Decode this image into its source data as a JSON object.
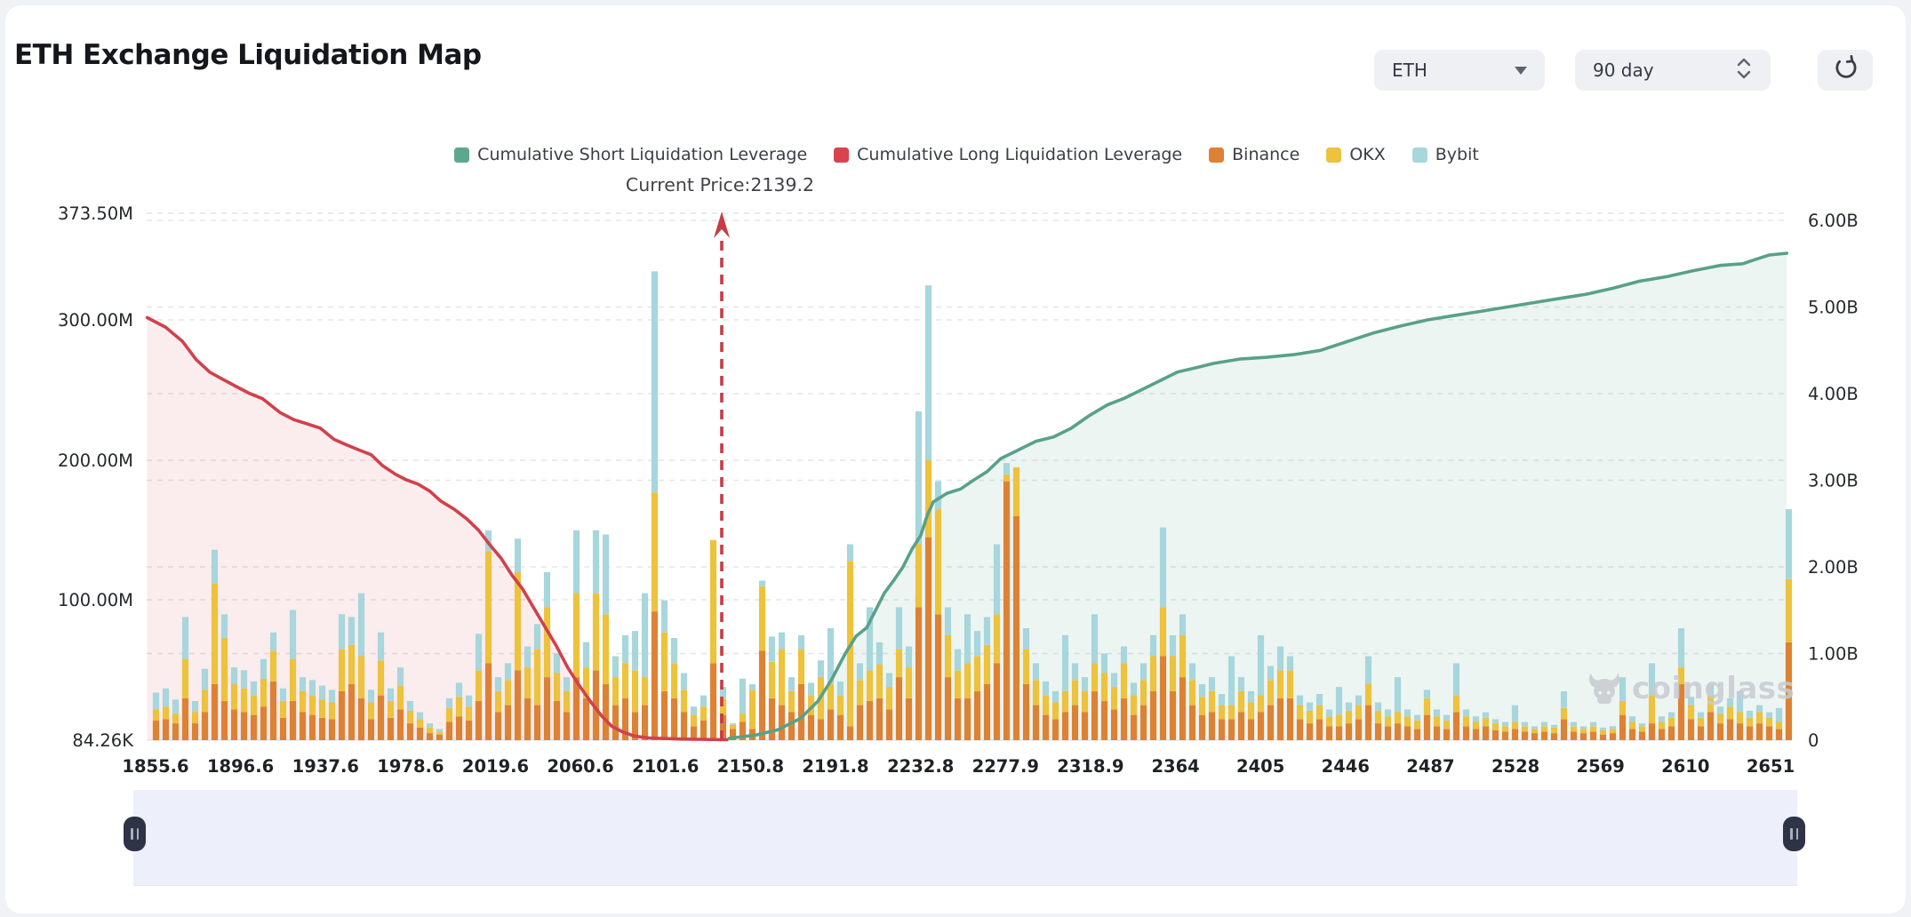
{
  "page": {
    "background": "#f1f2f5",
    "card_background": "#ffffff"
  },
  "header": {
    "title": "ETH Exchange Liquidation Map",
    "controls": {
      "symbol_select": {
        "value": "ETH",
        "icon": "caret-down-icon"
      },
      "period_select": {
        "value": "90 day",
        "icon": "stepper-chevrons-icon"
      },
      "refresh_button": {
        "icon": "refresh-icon"
      }
    }
  },
  "watermark": {
    "text": "coinglass",
    "icon": "bull-logo-icon"
  },
  "range_selector": {
    "track_color": "#edeffb",
    "handle_color": "#2e3346",
    "left_handle_icon": "pause-handle-icon",
    "right_handle_icon": "pause-handle-icon"
  },
  "chart_data": {
    "type": "bar",
    "title": "ETH Exchange Liquidation Map",
    "annotation": {
      "label": "Current Price:2139.2",
      "current_price": 2139.2
    },
    "legend": [
      {
        "label": "Cumulative Short Liquidation Leverage",
        "color": "#5ea78f",
        "series_type": "line"
      },
      {
        "label": "Cumulative Long Liquidation Leverage",
        "color": "#d9434e",
        "series_type": "line"
      },
      {
        "label": "Binance",
        "color": "#dd8234",
        "series_type": "bar"
      },
      {
        "label": "OKX",
        "color": "#edc23c",
        "series_type": "bar"
      },
      {
        "label": "Bybit",
        "color": "#a7d6dc",
        "series_type": "bar"
      }
    ],
    "colors": {
      "binance": "#dd8234",
      "okx": "#edc23c",
      "bybit": "#a7d6dc",
      "long_line": "#d0414c",
      "long_fill": "rgba(214,69,80,0.10)",
      "short_line": "#58a189",
      "short_fill": "rgba(94,167,143,0.11)",
      "arrow": "#c73b44",
      "grid": "#e4e5e7"
    },
    "x_axis": {
      "tick_labels": [
        "1855.6",
        "1896.6",
        "1937.6",
        "1978.6",
        "2019.6",
        "2060.6",
        "2101.6",
        "2150.8",
        "2191.8",
        "2232.8",
        "2277.9",
        "2318.9",
        "2364",
        "2405",
        "2446",
        "2487",
        "2528",
        "2569",
        "2610",
        "2651"
      ]
    },
    "left_axis": {
      "tick_labels": [
        "373.50M",
        "300.00M",
        "200.00M",
        "100.00M",
        "84.26K"
      ],
      "min": "84.26K",
      "max": "373.50M",
      "unit": "USD (millions)"
    },
    "right_axis": {
      "tick_labels": [
        "6.00B",
        "5.00B",
        "4.00B",
        "3.00B",
        "2.00B",
        "1.00B",
        "0"
      ],
      "min": 0,
      "max": "6.00B"
    },
    "grid": {
      "dashed": true
    },
    "stack_order": [
      "Binance",
      "OKX",
      "Bybit"
    ],
    "bars_unit": "M",
    "bars": [
      [
        14,
        8,
        12
      ],
      [
        15,
        9,
        13
      ],
      [
        12,
        7,
        10
      ],
      [
        30,
        28,
        30
      ],
      [
        12,
        8,
        8
      ],
      [
        20,
        16,
        15
      ],
      [
        40,
        72,
        24
      ],
      [
        28,
        45,
        17
      ],
      [
        22,
        18,
        12
      ],
      [
        20,
        17,
        13
      ],
      [
        18,
        14,
        10
      ],
      [
        24,
        20,
        14
      ],
      [
        42,
        22,
        13
      ],
      [
        16,
        12,
        9
      ],
      [
        28,
        30,
        35
      ],
      [
        20,
        15,
        10
      ],
      [
        18,
        14,
        11
      ],
      [
        16,
        13,
        10
      ],
      [
        15,
        12,
        9
      ],
      [
        35,
        30,
        25
      ],
      [
        40,
        28,
        20
      ],
      [
        30,
        30,
        45
      ],
      [
        15,
        12,
        9
      ],
      [
        32,
        25,
        20
      ],
      [
        16,
        12,
        9
      ],
      [
        22,
        17,
        13
      ],
      [
        12,
        9,
        7
      ],
      [
        9,
        6,
        5
      ],
      [
        5,
        4,
        3
      ],
      [
        4,
        2,
        2
      ],
      [
        13,
        10,
        7
      ],
      [
        17,
        14,
        10
      ],
      [
        14,
        10,
        8
      ],
      [
        28,
        22,
        26
      ],
      [
        55,
        80,
        15
      ],
      [
        20,
        15,
        10
      ],
      [
        25,
        18,
        12
      ],
      [
        50,
        70,
        24
      ],
      [
        30,
        22,
        15
      ],
      [
        25,
        40,
        18
      ],
      [
        45,
        50,
        25
      ],
      [
        28,
        20,
        14
      ],
      [
        20,
        15,
        10
      ],
      [
        45,
        60,
        45
      ],
      [
        30,
        22,
        18
      ],
      [
        50,
        55,
        45
      ],
      [
        40,
        50,
        57
      ],
      [
        25,
        20,
        15
      ],
      [
        30,
        25,
        20
      ],
      [
        20,
        30,
        28
      ],
      [
        25,
        20,
        60
      ],
      [
        92,
        85,
        158
      ],
      [
        35,
        42,
        23
      ],
      [
        30,
        25,
        18
      ],
      [
        20,
        16,
        12
      ],
      [
        10,
        8,
        6
      ],
      [
        14,
        10,
        8
      ],
      [
        55,
        88,
        0
      ],
      [
        18,
        12,
        8
      ],
      [
        8,
        3,
        1
      ],
      [
        13,
        6,
        25
      ],
      [
        8,
        28,
        4
      ],
      [
        64,
        46,
        4
      ],
      [
        30,
        26,
        18
      ],
      [
        25,
        40,
        12
      ],
      [
        20,
        15,
        10
      ],
      [
        40,
        25,
        10
      ],
      [
        18,
        14,
        9
      ],
      [
        15,
        30,
        12
      ],
      [
        22,
        18,
        40
      ],
      [
        18,
        14,
        10
      ],
      [
        10,
        118,
        12
      ],
      [
        25,
        18,
        12
      ],
      [
        28,
        22,
        45
      ],
      [
        30,
        24,
        16
      ],
      [
        22,
        16,
        10
      ],
      [
        45,
        20,
        30
      ],
      [
        30,
        22,
        15
      ],
      [
        95,
        45,
        95
      ],
      [
        145,
        55,
        125
      ],
      [
        90,
        75,
        20
      ],
      [
        45,
        30,
        20
      ],
      [
        30,
        20,
        15
      ],
      [
        30,
        25,
        35
      ],
      [
        35,
        25,
        18
      ],
      [
        40,
        28,
        20
      ],
      [
        55,
        35,
        50
      ],
      [
        185,
        5,
        8
      ],
      [
        160,
        35,
        0
      ],
      [
        40,
        25,
        15
      ],
      [
        25,
        18,
        12
      ],
      [
        18,
        14,
        10
      ],
      [
        15,
        12,
        8
      ],
      [
        20,
        15,
        40
      ],
      [
        25,
        18,
        12
      ],
      [
        20,
        15,
        10
      ],
      [
        35,
        20,
        35
      ],
      [
        28,
        20,
        14
      ],
      [
        22,
        16,
        10
      ],
      [
        30,
        25,
        12
      ],
      [
        18,
        14,
        9
      ],
      [
        25,
        18,
        12
      ],
      [
        35,
        25,
        15
      ],
      [
        60,
        35,
        57
      ],
      [
        35,
        25,
        15
      ],
      [
        45,
        30,
        15
      ],
      [
        25,
        18,
        12
      ],
      [
        18,
        13,
        9
      ],
      [
        20,
        15,
        10
      ],
      [
        15,
        10,
        8
      ],
      [
        15,
        10,
        35
      ],
      [
        20,
        15,
        10
      ],
      [
        15,
        12,
        8
      ],
      [
        20,
        12,
        43
      ],
      [
        25,
        18,
        10
      ],
      [
        30,
        20,
        17
      ],
      [
        30,
        20,
        10
      ],
      [
        15,
        10,
        7
      ],
      [
        12,
        9,
        6
      ],
      [
        15,
        10,
        8
      ],
      [
        10,
        7,
        5
      ],
      [
        10,
        8,
        20
      ],
      [
        12,
        9,
        6
      ],
      [
        15,
        10,
        7
      ],
      [
        25,
        15,
        20
      ],
      [
        12,
        9,
        6
      ],
      [
        10,
        7,
        5
      ],
      [
        12,
        8,
        25
      ],
      [
        10,
        7,
        5
      ],
      [
        8,
        6,
        4
      ],
      [
        18,
        12,
        6
      ],
      [
        10,
        7,
        5
      ],
      [
        8,
        6,
        4
      ],
      [
        20,
        12,
        23
      ],
      [
        10,
        7,
        5
      ],
      [
        8,
        5,
        4
      ],
      [
        10,
        6,
        4
      ],
      [
        7,
        5,
        3
      ],
      [
        6,
        4,
        3
      ],
      [
        8,
        5,
        12
      ],
      [
        6,
        4,
        3
      ],
      [
        5,
        3,
        2
      ],
      [
        6,
        4,
        3
      ],
      [
        5,
        4,
        2
      ],
      [
        15,
        8,
        12
      ],
      [
        6,
        4,
        3
      ],
      [
        5,
        3,
        2
      ],
      [
        6,
        4,
        3
      ],
      [
        4,
        3,
        2
      ],
      [
        5,
        3,
        2
      ],
      [
        18,
        10,
        17
      ],
      [
        8,
        5,
        4
      ],
      [
        6,
        4,
        2
      ],
      [
        12,
        20,
        23
      ],
      [
        8,
        5,
        4
      ],
      [
        10,
        6,
        4
      ],
      [
        40,
        12,
        28
      ],
      [
        15,
        10,
        6
      ],
      [
        10,
        6,
        4
      ],
      [
        20,
        12,
        8
      ],
      [
        12,
        7,
        5
      ],
      [
        15,
        9,
        6
      ],
      [
        12,
        8,
        15
      ],
      [
        10,
        6,
        5
      ],
      [
        12,
        8,
        5
      ],
      [
        10,
        6,
        4
      ],
      [
        8,
        5,
        10
      ],
      [
        70,
        45,
        50
      ]
    ],
    "series": [
      {
        "name": "Cumulative Long Liquidation Leverage",
        "axis": "left",
        "unit": "M",
        "points": [
          [
            -0.9,
            302
          ],
          [
            1,
            295
          ],
          [
            2.7,
            285
          ],
          [
            4.1,
            272
          ],
          [
            5.5,
            263
          ],
          [
            6.8,
            258
          ],
          [
            8.4,
            252
          ],
          [
            9.5,
            248
          ],
          [
            10.9,
            244
          ],
          [
            12.7,
            234
          ],
          [
            14.1,
            229
          ],
          [
            15.5,
            226
          ],
          [
            16.8,
            223
          ],
          [
            18.2,
            215
          ],
          [
            19.5,
            211
          ],
          [
            20.9,
            207
          ],
          [
            22,
            204
          ],
          [
            23.2,
            196
          ],
          [
            24.5,
            190
          ],
          [
            25.6,
            186
          ],
          [
            26.8,
            183
          ],
          [
            28,
            178
          ],
          [
            29.1,
            171
          ],
          [
            30.5,
            165
          ],
          [
            31.8,
            158
          ],
          [
            33,
            150
          ],
          [
            34.1,
            140
          ],
          [
            35.3,
            130
          ],
          [
            36.4,
            118
          ],
          [
            37.5,
            108
          ],
          [
            38.6,
            95
          ],
          [
            39.7,
            82
          ],
          [
            40.9,
            68
          ],
          [
            42.1,
            52
          ],
          [
            43.2,
            40
          ],
          [
            44.4,
            28
          ],
          [
            45.5,
            18
          ],
          [
            46.6,
            10
          ],
          [
            47.7,
            6
          ],
          [
            48.9,
            3
          ],
          [
            50.5,
            1.5
          ],
          [
            53.6,
            0.8
          ],
          [
            58.4,
            0.3
          ]
        ]
      },
      {
        "name": "Cumulative Short Liquidation Leverage",
        "axis": "right",
        "unit": "B",
        "points": [
          [
            58.6,
            0.02
          ],
          [
            61.4,
            0.06
          ],
          [
            63.6,
            0.12
          ],
          [
            65.9,
            0.25
          ],
          [
            67.7,
            0.45
          ],
          [
            69.1,
            0.7
          ],
          [
            70.5,
            1.0
          ],
          [
            71.6,
            1.2
          ],
          [
            72.7,
            1.3
          ],
          [
            73.6,
            1.5
          ],
          [
            74.5,
            1.7
          ],
          [
            75.5,
            1.85
          ],
          [
            76.4,
            2.0
          ],
          [
            77.3,
            2.2
          ],
          [
            78.2,
            2.36
          ],
          [
            78.9,
            2.6
          ],
          [
            79.5,
            2.75
          ],
          [
            80.9,
            2.85
          ],
          [
            82.3,
            2.9
          ],
          [
            83.6,
            3.0
          ],
          [
            85,
            3.1
          ],
          [
            86.4,
            3.25
          ],
          [
            88.2,
            3.35
          ],
          [
            90,
            3.45
          ],
          [
            91.8,
            3.5
          ],
          [
            93.6,
            3.6
          ],
          [
            95.5,
            3.75
          ],
          [
            97.3,
            3.87
          ],
          [
            99.1,
            3.95
          ],
          [
            100.9,
            4.05
          ],
          [
            102.7,
            4.15
          ],
          [
            104.5,
            4.25
          ],
          [
            106.4,
            4.3
          ],
          [
            108.2,
            4.35
          ],
          [
            110.9,
            4.4
          ],
          [
            113.6,
            4.42
          ],
          [
            116.4,
            4.45
          ],
          [
            119.1,
            4.5
          ],
          [
            121.8,
            4.6
          ],
          [
            124.5,
            4.7
          ],
          [
            127.3,
            4.78
          ],
          [
            130,
            4.85
          ],
          [
            132.7,
            4.9
          ],
          [
            135.5,
            4.95
          ],
          [
            138.2,
            5.0
          ],
          [
            140.9,
            5.05
          ],
          [
            143.6,
            5.1
          ],
          [
            146.4,
            5.15
          ],
          [
            149.1,
            5.22
          ],
          [
            151.8,
            5.3
          ],
          [
            154.5,
            5.35
          ],
          [
            157.3,
            5.42
          ],
          [
            160,
            5.48
          ],
          [
            162.3,
            5.5
          ],
          [
            163.6,
            5.55
          ],
          [
            165,
            5.6
          ],
          [
            166.8,
            5.62
          ]
        ]
      }
    ]
  }
}
